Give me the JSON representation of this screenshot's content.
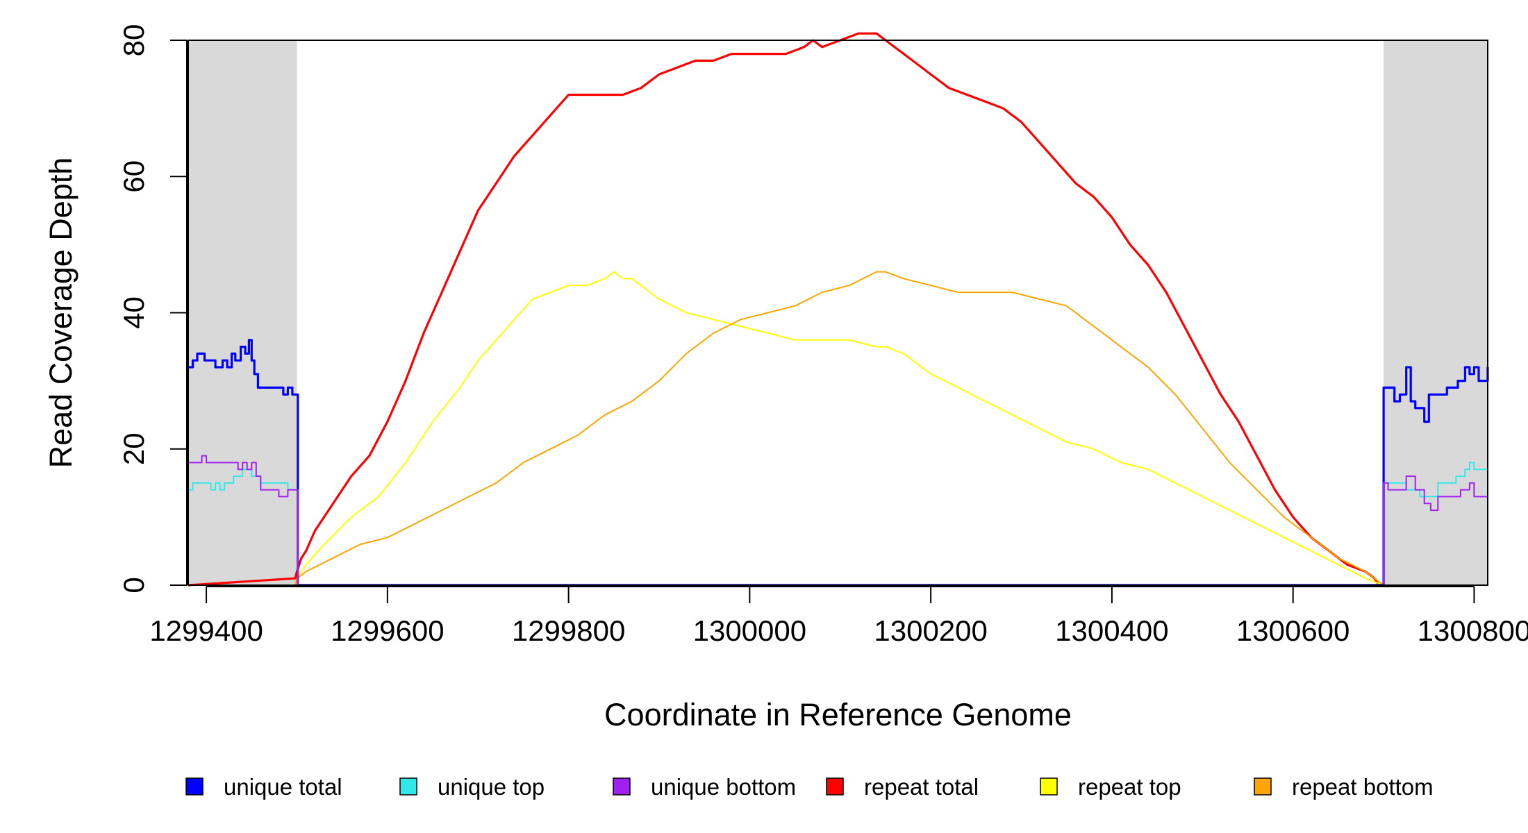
{
  "chart_data": {
    "type": "line",
    "title": "",
    "xlabel": "Coordinate in Reference Genome",
    "ylabel": "Read Coverage Depth",
    "xlim": [
      1299380,
      1300815
    ],
    "ylim": [
      0,
      80
    ],
    "x_ticks": [
      1299400,
      1299600,
      1299800,
      1300000,
      1300200,
      1300400,
      1300600,
      1300800
    ],
    "x_tick_labels": [
      "1299400",
      "1299600",
      "1299800",
      "1300000",
      "1300200",
      "1300400",
      "1300600",
      "1300800"
    ],
    "y_ticks": [
      0,
      20,
      40,
      60,
      80
    ],
    "y_tick_labels": [
      "0",
      "20",
      "40",
      "60",
      "80"
    ],
    "grid": false,
    "legend_position": "bottom",
    "shaded_regions": [
      {
        "x0": 1299380,
        "x1": 1299500,
        "color": "#d9d9d9"
      },
      {
        "x0": 1300700,
        "x1": 1300815,
        "color": "#d9d9d9"
      }
    ],
    "series": [
      {
        "name": "unique total",
        "color": "#0000ff",
        "stroke": 3.2,
        "step": true,
        "x": [
          1299380,
          1299385,
          1299390,
          1299398,
          1299405,
          1299410,
          1299418,
          1299423,
          1299428,
          1299432,
          1299438,
          1299443,
          1299447,
          1299450,
          1299453,
          1299457,
          1299462,
          1299475,
          1299485,
          1299490,
          1299495,
          1299501,
          1299501,
          1300700,
          1300700,
          1300708,
          1300712,
          1300718,
          1300722,
          1300725,
          1300730,
          1300735,
          1300745,
          1300750,
          1300758,
          1300770,
          1300782,
          1300790,
          1300795,
          1300800,
          1300805,
          1300815
        ],
        "y": [
          32,
          33,
          34,
          33,
          33,
          32,
          33,
          32,
          34,
          33,
          35,
          34,
          36,
          33,
          31,
          29,
          29,
          29,
          28,
          29,
          28,
          28,
          0,
          0,
          29,
          29,
          27,
          28,
          28,
          32,
          27,
          26,
          24,
          28,
          28,
          29,
          30,
          32,
          31,
          32,
          30,
          32
        ]
      },
      {
        "name": "unique top",
        "color": "#33e8e8",
        "stroke": 2,
        "step": true,
        "x": [
          1299380,
          1299385,
          1299400,
          1299405,
          1299410,
          1299415,
          1299420,
          1299430,
          1299440,
          1299450,
          1299460,
          1299470,
          1299480,
          1299490,
          1299495,
          1299501,
          1299501,
          1300700,
          1300700,
          1300710,
          1300725,
          1300740,
          1300760,
          1300780,
          1300790,
          1300795,
          1300800,
          1300815
        ],
        "y": [
          14,
          15,
          15,
          14,
          15,
          14,
          15,
          16,
          17,
          16,
          15,
          15,
          15,
          14,
          14,
          14,
          0,
          0,
          15,
          15,
          14,
          13,
          15,
          16,
          17,
          18,
          17,
          18
        ]
      },
      {
        "name": "unique bottom",
        "color": "#a020f0",
        "stroke": 2,
        "step": true,
        "x": [
          1299380,
          1299390,
          1299395,
          1299400,
          1299410,
          1299420,
          1299430,
          1299435,
          1299440,
          1299445,
          1299450,
          1299455,
          1299460,
          1299475,
          1299480,
          1299490,
          1299501,
          1299501,
          1300700,
          1300700,
          1300705,
          1300720,
          1300725,
          1300735,
          1300745,
          1300752,
          1300760,
          1300775,
          1300785,
          1300795,
          1300800,
          1300815
        ],
        "y": [
          18,
          18,
          19,
          18,
          18,
          18,
          18,
          17,
          18,
          17,
          18,
          16,
          14,
          14,
          13,
          14,
          14,
          0,
          0,
          15,
          14,
          14,
          16,
          14,
          12,
          11,
          13,
          13,
          14,
          15,
          13,
          14
        ]
      },
      {
        "name": "repeat total",
        "color": "#ff0000",
        "stroke": 3.2,
        "step": false,
        "x": [
          1299380,
          1299498,
          1299500,
          1299505,
          1299510,
          1299520,
          1299540,
          1299560,
          1299580,
          1299600,
          1299620,
          1299640,
          1299660,
          1299680,
          1299700,
          1299720,
          1299740,
          1299760,
          1299780,
          1299800,
          1299820,
          1299840,
          1299850,
          1299860,
          1299880,
          1299900,
          1299920,
          1299940,
          1299960,
          1299980,
          1300000,
          1300020,
          1300040,
          1300060,
          1300070,
          1300080,
          1300100,
          1300120,
          1300140,
          1300150,
          1300160,
          1300180,
          1300200,
          1300220,
          1300240,
          1300260,
          1300280,
          1300300,
          1300320,
          1300340,
          1300360,
          1300380,
          1300400,
          1300420,
          1300440,
          1300460,
          1300480,
          1300500,
          1300520,
          1300540,
          1300560,
          1300580,
          1300600,
          1300620,
          1300640,
          1300660,
          1300680,
          1300690,
          1300695,
          1300700
        ],
        "y": [
          0,
          1,
          2,
          4,
          5,
          8,
          12,
          16,
          19,
          24,
          30,
          37,
          43,
          49,
          55,
          59,
          63,
          66,
          69,
          72,
          72,
          72,
          72,
          72,
          73,
          75,
          76,
          77,
          77,
          78,
          78,
          78,
          78,
          79,
          80,
          79,
          80,
          81,
          81,
          80,
          79,
          77,
          75,
          73,
          72,
          71,
          70,
          68,
          65,
          62,
          59,
          57,
          54,
          50,
          47,
          43,
          38,
          33,
          28,
          24,
          19,
          14,
          10,
          7,
          5,
          3,
          2,
          1,
          0,
          0
        ]
      },
      {
        "name": "repeat top",
        "color": "#ffff00",
        "stroke": 2,
        "step": false,
        "x": [
          1299380,
          1299498,
          1299500,
          1299510,
          1299530,
          1299560,
          1299590,
          1299620,
          1299650,
          1299680,
          1299700,
          1299720,
          1299740,
          1299760,
          1299780,
          1299800,
          1299820,
          1299840,
          1299850,
          1299860,
          1299870,
          1299900,
          1299930,
          1299960,
          1299990,
          1300020,
          1300050,
          1300080,
          1300110,
          1300140,
          1300150,
          1300170,
          1300200,
          1300230,
          1300260,
          1300290,
          1300320,
          1300350,
          1300380,
          1300410,
          1300440,
          1300470,
          1300500,
          1300530,
          1300560,
          1300590,
          1300620,
          1300650,
          1300680,
          1300700
        ],
        "y": [
          0,
          0,
          1,
          3,
          6,
          10,
          13,
          18,
          24,
          29,
          33,
          36,
          39,
          42,
          43,
          44,
          44,
          45,
          46,
          45,
          45,
          42,
          40,
          39,
          38,
          37,
          36,
          36,
          36,
          35,
          35,
          34,
          31,
          29,
          27,
          25,
          23,
          21,
          20,
          18,
          17,
          15,
          13,
          11,
          9,
          7,
          5,
          3,
          1,
          0
        ]
      },
      {
        "name": "repeat bottom",
        "color": "#ffa500",
        "stroke": 2,
        "step": false,
        "x": [
          1299380,
          1299498,
          1299500,
          1299510,
          1299540,
          1299570,
          1299600,
          1299630,
          1299660,
          1299690,
          1299720,
          1299750,
          1299780,
          1299810,
          1299840,
          1299870,
          1299900,
          1299930,
          1299960,
          1299990,
          1300020,
          1300050,
          1300080,
          1300110,
          1300140,
          1300150,
          1300170,
          1300200,
          1300230,
          1300260,
          1300290,
          1300320,
          1300350,
          1300380,
          1300410,
          1300440,
          1300470,
          1300500,
          1300530,
          1300560,
          1300590,
          1300620,
          1300650,
          1300680,
          1300700
        ],
        "y": [
          0,
          0,
          1,
          2,
          4,
          6,
          7,
          9,
          11,
          13,
          15,
          18,
          20,
          22,
          25,
          27,
          30,
          34,
          37,
          39,
          40,
          41,
          43,
          44,
          46,
          46,
          45,
          44,
          43,
          43,
          43,
          42,
          41,
          38,
          35,
          32,
          28,
          23,
          18,
          14,
          10,
          7,
          4,
          2,
          0
        ]
      }
    ]
  }
}
